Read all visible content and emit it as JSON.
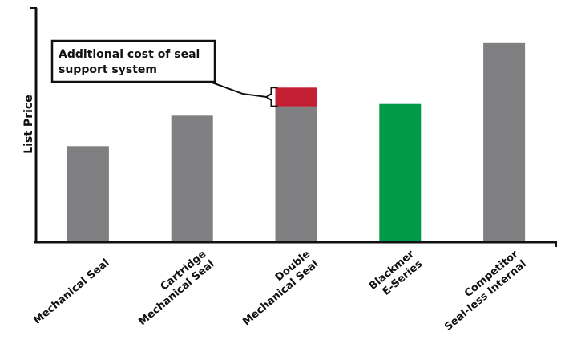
{
  "chart_data": {
    "type": "bar",
    "stacked": true,
    "categories": [
      [
        "Mechanical Seal"
      ],
      [
        "Cartridge",
        "Mechanical Seal"
      ],
      [
        "Double",
        "Mechanical Seal"
      ],
      [
        "Blackmer",
        "E-Series"
      ],
      [
        "Competitor",
        "Seal-less Internal"
      ]
    ],
    "series": [
      {
        "values": [
          41,
          54,
          58,
          59,
          85
        ],
        "colors": [
          "#808083",
          "#808083",
          "#808083",
          "#009a49",
          "#808083"
        ]
      },
      {
        "values": [
          0,
          0,
          8,
          0,
          0
        ],
        "colors": [
          "#c21f32",
          "#c21f32",
          "#c21f32",
          "#c21f32",
          "#c21f32"
        ]
      }
    ],
    "ylim": [
      0,
      100
    ],
    "ylabel": "List Price",
    "xlabel": "",
    "title": "",
    "grid": false,
    "annotation": {
      "text": [
        "Additional cost of seal",
        "support system"
      ],
      "target_category": 2
    }
  }
}
